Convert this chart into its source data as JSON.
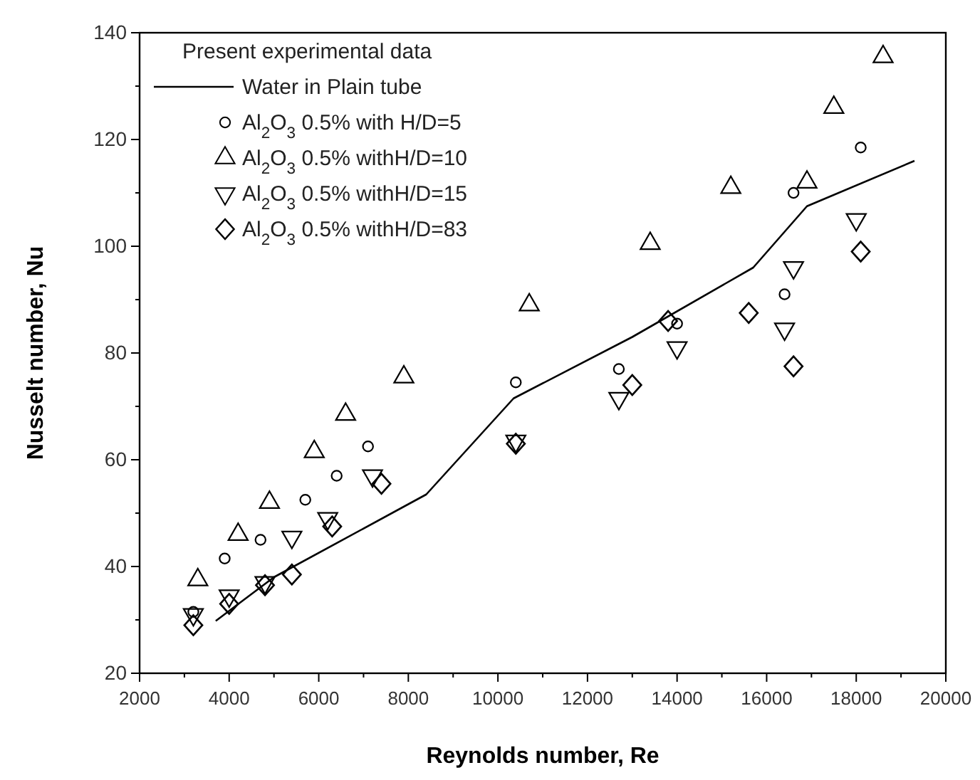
{
  "chart_data": {
    "type": "scatter",
    "xlabel": "Reynolds number, Re",
    "ylabel": "Nusselt number, Nu",
    "legend_title": "Present experimental data",
    "legend": "top left",
    "grid": false,
    "xlim": [
      2000,
      20000
    ],
    "xticks": [
      2000,
      4000,
      6000,
      8000,
      10000,
      12000,
      14000,
      16000,
      18000,
      20000
    ],
    "ylim": [
      20,
      140
    ],
    "yticks": [
      20,
      40,
      60,
      80,
      100,
      120,
      140
    ],
    "series": [
      {
        "name": "Water in Plain tube",
        "type": "line",
        "color": "#000000",
        "marker": "none",
        "line_style": "solid",
        "x": [
          3700,
          5000,
          8400,
          10350,
          13000,
          15700,
          16900,
          19300
        ],
        "values": [
          29.8,
          38,
          53.5,
          71.5,
          83,
          96,
          107.5,
          116
        ]
      },
      {
        "name": "Al$_{2}$O$_{3}$ 0.5% with H/D=5",
        "color": "#000000",
        "marker": "circle",
        "x": [
          3200,
          3900,
          4700,
          5700,
          6400,
          7100,
          10400,
          12700,
          14000,
          16400,
          16600,
          18100
        ],
        "values": [
          31.5,
          41.5,
          45,
          52.5,
          57,
          62.5,
          74.5,
          77,
          85.5,
          91,
          110,
          118.5
        ]
      },
      {
        "name": "Al$_{2}$O$_{3}$ 0.5% withH/D=10",
        "color": "#000000",
        "marker": "triangle",
        "x": [
          3300,
          4200,
          4900,
          5900,
          6600,
          7900,
          10700,
          13400,
          15200,
          16900,
          17500,
          18600
        ],
        "values": [
          37.5,
          46,
          52,
          61.5,
          68.5,
          75.5,
          89,
          100.5,
          111,
          112,
          126,
          135.5
        ]
      },
      {
        "name": "Al$_{2}$O$_{3}$ 0.5% withH/D=15",
        "color": "#000000",
        "marker": "triangle-down",
        "x": [
          3200,
          4000,
          4800,
          5400,
          6200,
          7200,
          10400,
          12700,
          14000,
          16400,
          16600,
          18000
        ],
        "values": [
          31,
          34.5,
          37,
          45.5,
          49,
          57,
          63.5,
          71.5,
          81,
          84.5,
          96,
          105
        ]
      },
      {
        "name": "Al$_{2}$O$_{3}$ 0.5% withH/D=83",
        "color": "#000000",
        "marker": "diamond",
        "x": [
          3200,
          4000,
          4800,
          5400,
          6300,
          7400,
          10400,
          13000,
          13800,
          15600,
          16600,
          18100
        ],
        "values": [
          29,
          33,
          36.5,
          38.5,
          47.5,
          55.5,
          63,
          74,
          86,
          87.5,
          77.5,
          99
        ]
      }
    ]
  }
}
